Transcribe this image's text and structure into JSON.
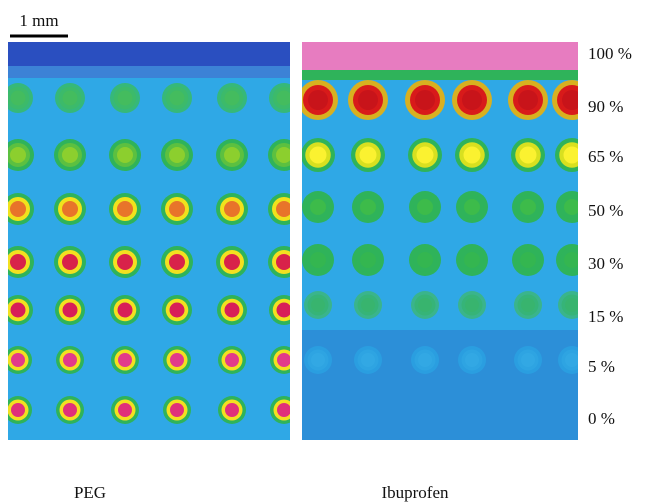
{
  "scale_bar": {
    "label": "1 mm"
  },
  "row_labels": [
    "100 %",
    "90 %",
    "65 %",
    "50 %",
    "30 %",
    "15 %",
    "5 %",
    "0 %"
  ],
  "panels": [
    {
      "label": "PEG"
    },
    {
      "label": "Ibuprofen"
    }
  ]
}
